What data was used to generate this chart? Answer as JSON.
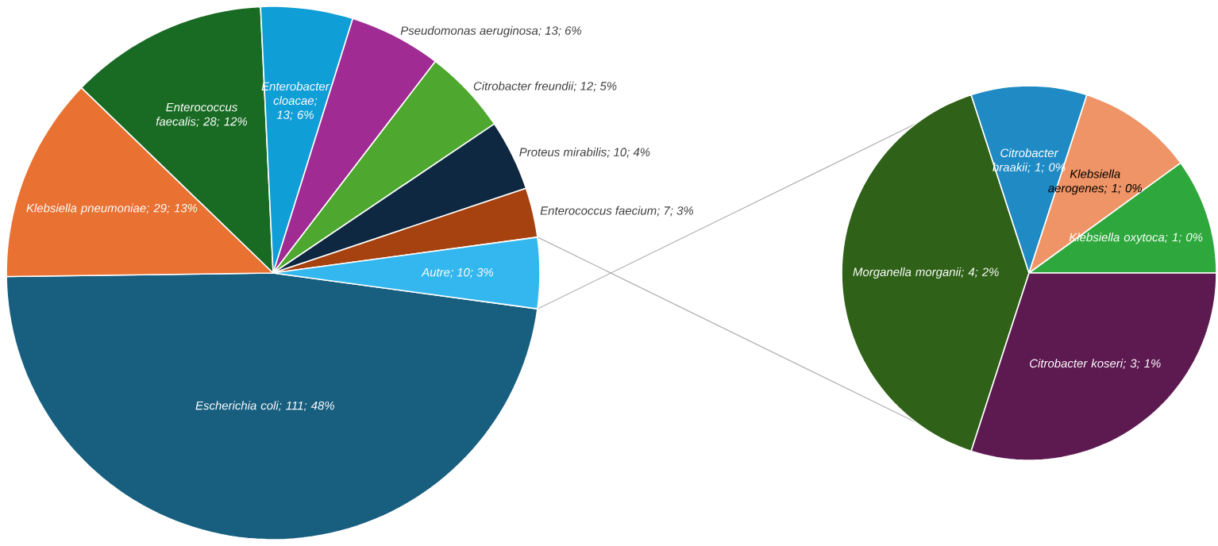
{
  "chart_data": [
    {
      "type": "pie",
      "categories": [
        "Escherichia coli",
        "Klebsiella pneumoniae",
        "Enterococcus faecalis",
        "Enterobacter cloacae",
        "Pseudomonas aeruginosa",
        "Citrobacter freundii",
        "Proteus mirabilis",
        "Enterococcus faecium",
        "Autre"
      ],
      "values": [
        111,
        29,
        28,
        13,
        13,
        12,
        10,
        7,
        10
      ],
      "value_labels": [
        "; 111; 48%",
        "; 29; 13%",
        "; 28; 12%",
        "; 13; 6%",
        "; 13; 6%",
        "; 12; 5%",
        "; 10; 4%",
        "; 7; 3%",
        "; 10; 3%"
      ],
      "colors": [
        "#175e7f",
        "#e97132",
        "#196b24",
        "#0f9ed5",
        "#a02b93",
        "#4ea72e",
        "#0e2841",
        "#a5420f",
        "#33b7ee"
      ]
    },
    {
      "type": "pie",
      "categories": [
        "Morganella morganii",
        "Citrobacter braakii",
        "Klebsiella aerogenes",
        "Klebsiella oxytoca",
        "Citrobacter koseri"
      ],
      "values": [
        4,
        1,
        1,
        1,
        3
      ],
      "value_labels": [
        "; 4; 2%",
        "; 1; 0%",
        "; 1; 0%",
        "; 1; 0%",
        "; 3; 1%"
      ],
      "colors": [
        "#2f6118",
        "#1f8ac4",
        "#ee9466",
        "#2ea83c",
        "#5d1a51"
      ]
    }
  ]
}
